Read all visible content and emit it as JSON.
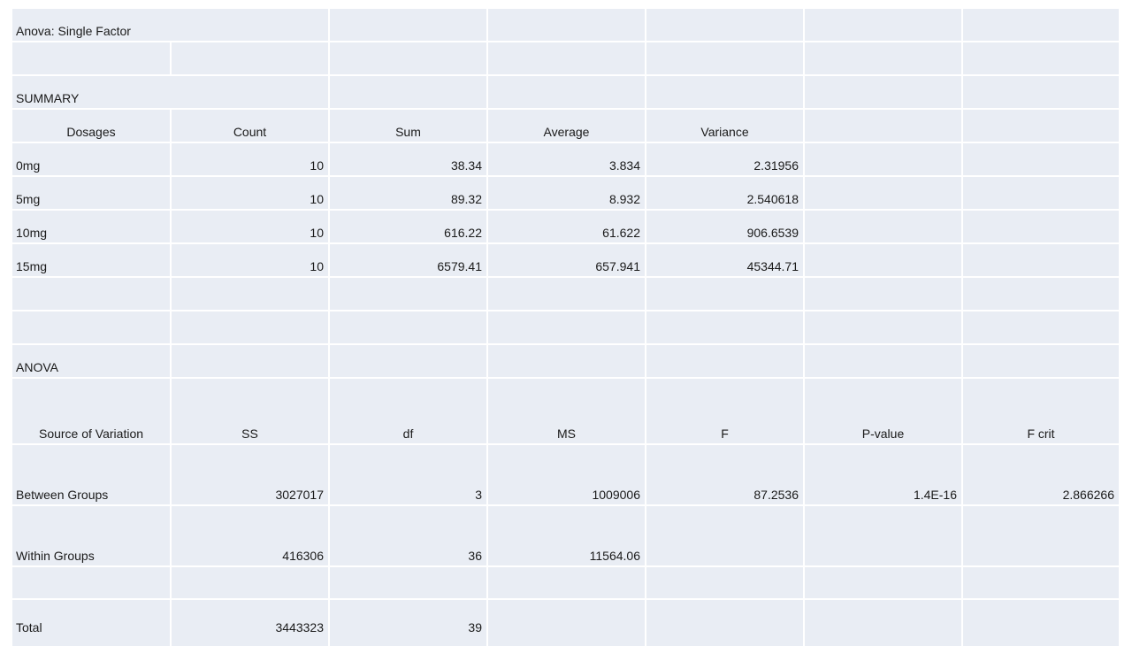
{
  "colors": {
    "cell_bg": "#e9edf4",
    "gridline": "#ffffff",
    "text": "#1a1a1a"
  },
  "title": "Anova: Single Factor",
  "summary": {
    "label": "SUMMARY",
    "headers": [
      "Dosages",
      "Count",
      "Sum",
      "Average",
      "Variance"
    ],
    "rows": [
      {
        "group": "0mg",
        "count": "10",
        "sum": "38.34",
        "average": "3.834",
        "variance": "2.31956"
      },
      {
        "group": "5mg",
        "count": "10",
        "sum": "89.32",
        "average": "8.932",
        "variance": "2.540618"
      },
      {
        "group": "10mg",
        "count": "10",
        "sum": "616.22",
        "average": "61.622",
        "variance": "906.6539"
      },
      {
        "group": "15mg",
        "count": "10",
        "sum": "6579.41",
        "average": "657.941",
        "variance": "45344.71"
      }
    ]
  },
  "anova": {
    "label": "ANOVA",
    "headers": [
      "Source of Variation",
      "SS",
      "df",
      "MS",
      "F",
      "P-value",
      "F crit"
    ],
    "rows": [
      {
        "source": "Between Groups",
        "ss": "3027017",
        "df": "3",
        "ms": "1009006",
        "f": "87.2536",
        "p_value": "1.4E-16",
        "f_crit": "2.866266"
      },
      {
        "source": "Within Groups",
        "ss": "416306",
        "df": "36",
        "ms": "11564.06",
        "f": "",
        "p_value": "",
        "f_crit": ""
      },
      {
        "source": "Total",
        "ss": "3443323",
        "df": "39",
        "ms": "",
        "f": "",
        "p_value": "",
        "f_crit": ""
      }
    ]
  }
}
